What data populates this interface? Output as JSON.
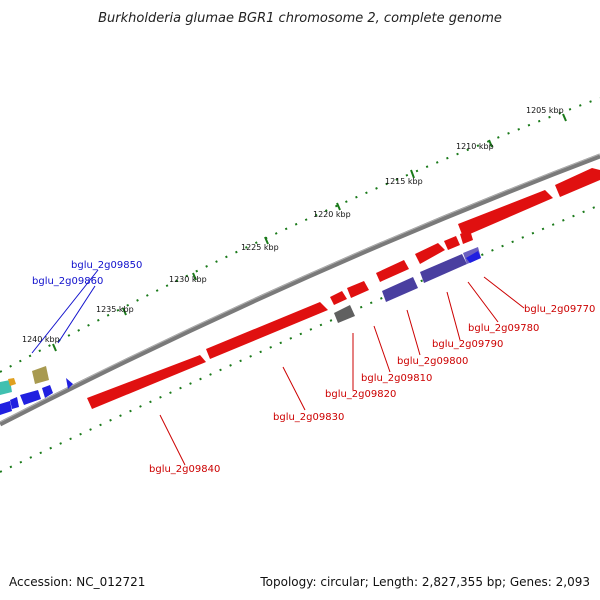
{
  "map": {
    "title": "Burkholderia glumae BGR1 chromosome 2, complete genome",
    "accession": "Accession: NC_012721",
    "summary": "Topology: circular; Length: 2,827,355 bp; Genes: 2,093"
  },
  "scale_labels": [
    "1205 kbp",
    "1210 kbp",
    "1215 kbp",
    "1220 kbp",
    "1225 kbp",
    "1230 kbp",
    "1235 kbp",
    "1240 kbp"
  ],
  "genes_forward": [
    "bglu_2g09770",
    "bglu_2g09780",
    "bglu_2g09790",
    "bglu_2g09800",
    "bglu_2g09810",
    "bglu_2g09820",
    "bglu_2g09830",
    "bglu_2g09840"
  ],
  "genes_reverse": [
    "bglu_2g09850",
    "bglu_2g09860"
  ],
  "colors": {
    "backbone": "#7a7a7a",
    "gene_red": "#e01010",
    "gene_red_label": "#cc0000",
    "gene_blue": "#2020e0",
    "gene_blue_label": "#1010cc",
    "gene_purple": "#4a3fa0",
    "gene_gray": "#606060",
    "gene_olive": "#a89a50",
    "tick_green": "#1a7a1a"
  }
}
